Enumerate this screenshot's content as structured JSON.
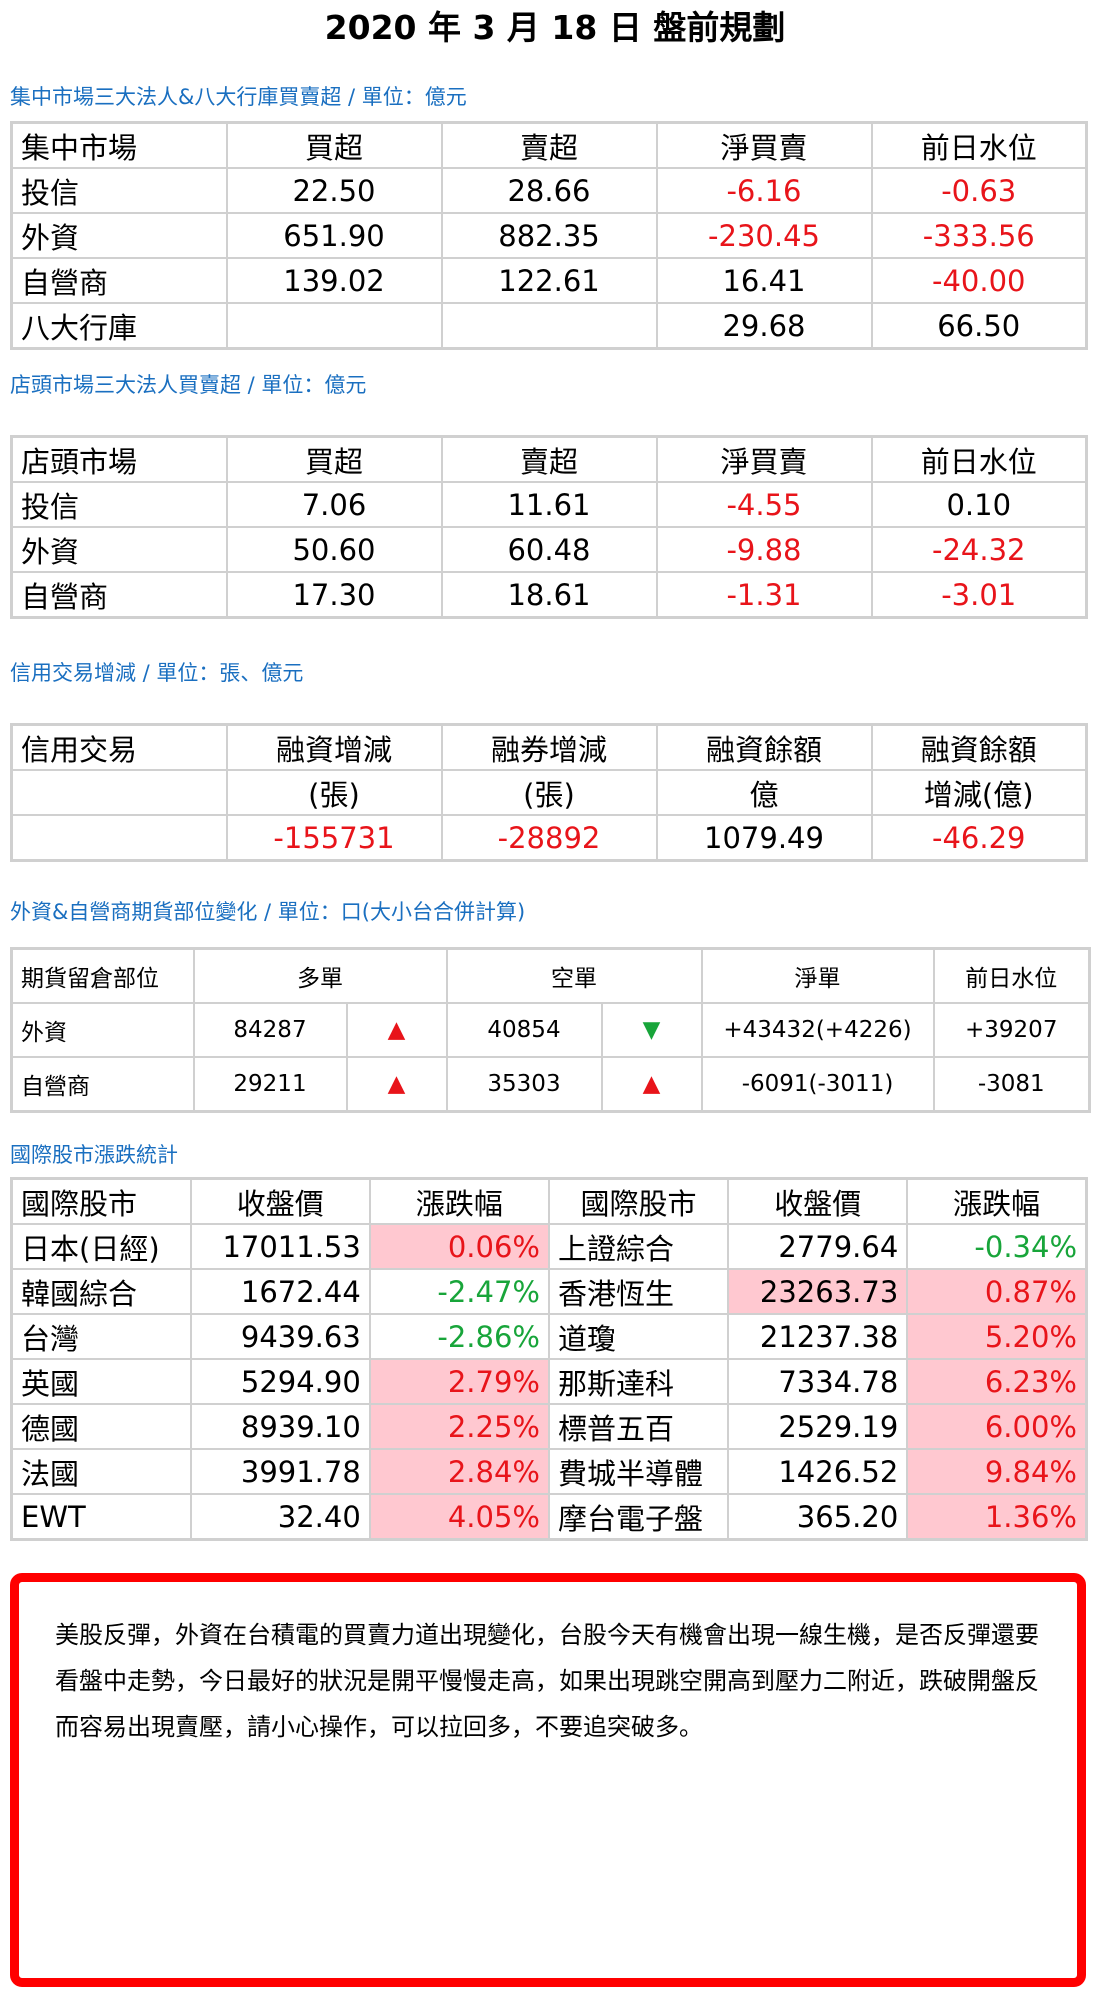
{
  "page_title": "2020 年 3 月 18 日  盤前規劃",
  "sections": {
    "listed": {
      "heading": "集中市場三大法人&八大行庫買賣超 / 單位：億元",
      "headers": [
        "集中市場",
        "買超",
        "賣超",
        "淨買賣",
        "前日水位"
      ],
      "rows": [
        [
          "投信",
          "22.50",
          "28.66",
          "-6.16",
          "-0.63"
        ],
        [
          "外資",
          "651.90",
          "882.35",
          "-230.45",
          "-333.56"
        ],
        [
          "自營商",
          "139.02",
          "122.61",
          "16.41",
          "-40.00"
        ],
        [
          "八大行庫",
          "",
          "",
          "29.68",
          "66.50"
        ]
      ]
    },
    "otc": {
      "heading": "店頭市場三大法人買賣超 / 單位：億元",
      "headers": [
        "店頭市場",
        "買超",
        "賣超",
        "淨買賣",
        "前日水位"
      ],
      "rows": [
        [
          "投信",
          "7.06",
          "11.61",
          "-4.55",
          "0.10"
        ],
        [
          "外資",
          "50.60",
          "60.48",
          "-9.88",
          "-24.32"
        ],
        [
          "自營商",
          "17.30",
          "18.61",
          "-1.31",
          "-3.01"
        ]
      ]
    },
    "margin": {
      "heading": "信用交易增減 / 單位：張、億元",
      "headers": [
        "信用交易",
        "融資增減",
        "融券增減",
        "融資餘額",
        "融資餘額"
      ],
      "subheaders": [
        "",
        "(張)",
        "(張)",
        "億",
        "增減(億)"
      ],
      "values": [
        "",
        "-155731",
        "-28892",
        "1079.49",
        "-46.29"
      ]
    },
    "futures": {
      "heading": "外資&自營商期貨部位變化 / 單位：口(大小台合併計算)",
      "headers": [
        "期貨留倉部位",
        "多單",
        "空單",
        "淨單",
        "前日水位"
      ],
      "rows": [
        {
          "name": "外資",
          "long": "84287",
          "long_dir": "up",
          "short": "40854",
          "short_dir": "down",
          "net": "+43432(+4226)",
          "prev": "+39207"
        },
        {
          "name": "自營商",
          "long": "29211",
          "long_dir": "up",
          "short": "35303",
          "short_dir": "up",
          "net": "-6091(-3011)",
          "prev": "-3081"
        }
      ]
    },
    "intl": {
      "heading": "國際股市漲跌統計",
      "headers": [
        "國際股市",
        "收盤價",
        "漲跌幅",
        "國際股市",
        "收盤價",
        "漲跌幅"
      ],
      "rows": [
        [
          "日本(日經)",
          "17011.53",
          "0.06%",
          "上證綜合",
          "2779.64",
          "-0.34%"
        ],
        [
          "韓國綜合",
          "1672.44",
          "-2.47%",
          "香港恆生",
          "23263.73",
          "0.87%"
        ],
        [
          "台灣",
          "9439.63",
          "-2.86%",
          "道瓊",
          "21237.38",
          "5.20%"
        ],
        [
          "英國",
          "5294.90",
          "2.79%",
          "那斯達科",
          "7334.78",
          "6.23%"
        ],
        [
          "德國",
          "8939.10",
          "2.25%",
          "標普五百",
          "2529.19",
          "6.00%"
        ],
        [
          "法國",
          "3991.78",
          "2.84%",
          "費城半導體",
          "1426.52",
          "9.84%"
        ],
        [
          "EWT",
          "32.40",
          "4.05%",
          "摩台電子盤",
          "365.20",
          "1.36%"
        ]
      ]
    }
  },
  "colors": {
    "red": "#e8141a",
    "green": "#18a53a",
    "heading_blue": "#1a6fc0",
    "highlight_pink": "#ffc8d0",
    "note_border": "#ff0000"
  },
  "icons": {
    "up": "red-up-triangle-icon",
    "down": "green-down-triangle-icon"
  },
  "note": "美股反彈，外資在台積電的買賣力道出現變化，台股今天有機會出現一線生機，是否反彈還要看盤中走勢，今日最好的狀況是開平慢慢走高，如果出現跳空開高到壓力二附近，跌破開盤反而容易出現賣壓，請小心操作，可以拉回多，不要追突破多。"
}
